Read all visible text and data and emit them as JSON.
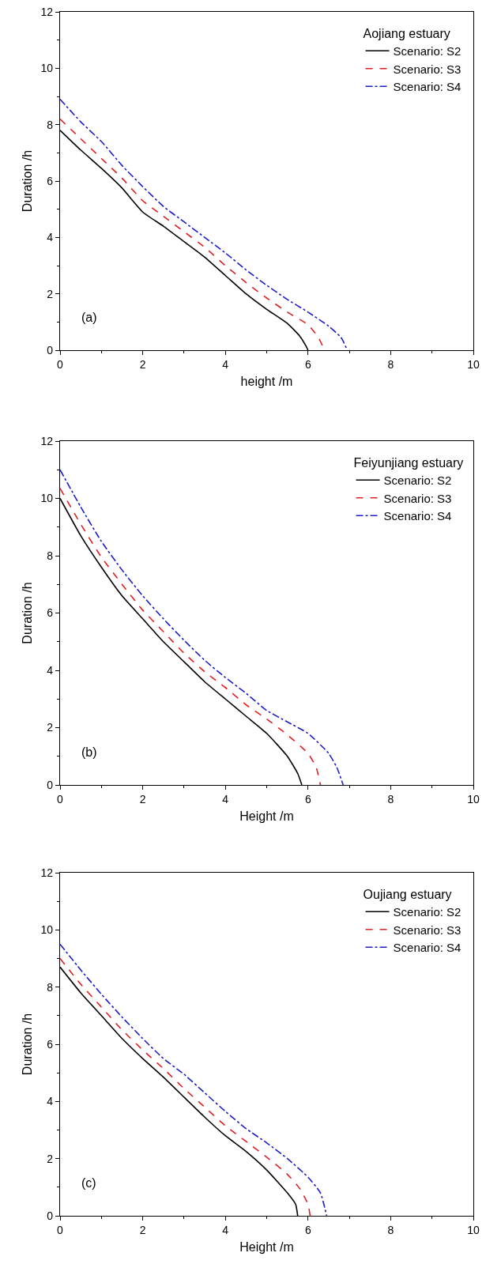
{
  "chart_data": [
    {
      "type": "line",
      "legend_title": "Aojiang estuary",
      "xlabel": "height /m",
      "ylabel": "Duration /h",
      "annotations": [
        "(a)"
      ],
      "legend": "top right",
      "xlim": [
        0,
        10
      ],
      "ylim": [
        0,
        12
      ],
      "xticks": [
        0,
        2,
        4,
        6,
        8,
        10
      ],
      "yticks": [
        0,
        2,
        4,
        6,
        8,
        10,
        12
      ],
      "series": [
        {
          "name": "Scenario: S2",
          "color": "#000000",
          "line_style": "solid",
          "x": [
            0,
            0.5,
            1,
            1.5,
            2,
            2.5,
            3,
            3.5,
            4,
            4.5,
            5,
            5.5,
            5.8,
            5.95,
            6.0
          ],
          "values": [
            7.8,
            7.1,
            6.45,
            5.75,
            4.9,
            4.4,
            3.85,
            3.3,
            2.65,
            2.0,
            1.45,
            0.95,
            0.5,
            0.15,
            0
          ]
        },
        {
          "name": "Scenario: S3",
          "color": "#e02020",
          "line_style": "dashed",
          "x": [
            0,
            0.5,
            1,
            1.5,
            2,
            2.5,
            3,
            3.5,
            4,
            4.5,
            5,
            5.5,
            6,
            6.25,
            6.4
          ],
          "values": [
            8.2,
            7.5,
            6.8,
            6.1,
            5.3,
            4.75,
            4.2,
            3.65,
            3.0,
            2.4,
            1.85,
            1.35,
            0.9,
            0.45,
            0
          ]
        },
        {
          "name": "Scenario: S4",
          "color": "#1c1cc8",
          "line_style": "dashdot",
          "x": [
            0,
            0.5,
            1,
            1.5,
            2,
            2.5,
            3,
            3.5,
            4,
            4.5,
            5,
            5.5,
            6,
            6.5,
            6.8,
            6.95
          ],
          "values": [
            8.9,
            8.1,
            7.4,
            6.55,
            5.8,
            5.1,
            4.55,
            4.0,
            3.45,
            2.85,
            2.3,
            1.8,
            1.35,
            0.85,
            0.45,
            0
          ]
        }
      ]
    },
    {
      "type": "line",
      "legend_title": "Feiyunjiang estuary",
      "xlabel": "Height /m",
      "ylabel": "Duration /h",
      "annotations": [
        "(b)"
      ],
      "legend": "top right",
      "xlim": [
        0,
        10
      ],
      "ylim": [
        0,
        12
      ],
      "xticks": [
        0,
        2,
        4,
        6,
        8,
        10
      ],
      "yticks": [
        0,
        2,
        4,
        6,
        8,
        10,
        12
      ],
      "series": [
        {
          "name": "Scenario: S2",
          "color": "#000000",
          "line_style": "solid",
          "x": [
            0,
            0.5,
            1,
            1.5,
            2,
            2.5,
            3,
            3.5,
            4,
            4.5,
            5,
            5.5,
            5.75,
            5.85
          ],
          "values": [
            10.0,
            8.7,
            7.6,
            6.6,
            5.8,
            5.0,
            4.3,
            3.6,
            3.0,
            2.4,
            1.8,
            1.0,
            0.4,
            0
          ]
        },
        {
          "name": "Scenario: S3",
          "color": "#e02020",
          "line_style": "dashed",
          "x": [
            0,
            0.5,
            1,
            1.5,
            2,
            2.5,
            3,
            3.5,
            4,
            4.5,
            5,
            5.5,
            6,
            6.2,
            6.3
          ],
          "values": [
            10.35,
            9.1,
            7.95,
            7.0,
            6.1,
            5.35,
            4.6,
            3.95,
            3.4,
            2.8,
            2.3,
            1.75,
            1.1,
            0.6,
            0
          ]
        },
        {
          "name": "Scenario: S4",
          "color": "#1c1cc8",
          "line_style": "dashdot",
          "x": [
            0,
            0.5,
            1,
            1.5,
            2,
            2.5,
            3,
            3.5,
            4,
            4.5,
            5,
            5.5,
            6,
            6.5,
            6.7,
            6.85
          ],
          "values": [
            11.0,
            9.7,
            8.5,
            7.5,
            6.6,
            5.8,
            5.05,
            4.35,
            3.75,
            3.2,
            2.6,
            2.2,
            1.8,
            1.1,
            0.6,
            0
          ]
        }
      ]
    },
    {
      "type": "line",
      "legend_title": "Oujiang estuary",
      "xlabel": "Height /m",
      "ylabel": "Duration /h",
      "annotations": [
        "(c)"
      ],
      "legend": "top right",
      "xlim": [
        0,
        10
      ],
      "ylim": [
        0,
        12
      ],
      "xticks": [
        0,
        2,
        4,
        6,
        8,
        10
      ],
      "yticks": [
        0,
        2,
        4,
        6,
        8,
        10,
        12
      ],
      "series": [
        {
          "name": "Scenario: S2",
          "color": "#000000",
          "line_style": "solid",
          "x": [
            0,
            0.5,
            1,
            1.5,
            2,
            2.5,
            3,
            3.5,
            4,
            4.5,
            5,
            5.5,
            5.7,
            5.75
          ],
          "values": [
            8.7,
            7.8,
            7.0,
            6.2,
            5.5,
            4.85,
            4.15,
            3.45,
            2.8,
            2.25,
            1.6,
            0.8,
            0.4,
            0
          ]
        },
        {
          "name": "Scenario: S3",
          "color": "#e02020",
          "line_style": "dashed",
          "x": [
            0,
            0.5,
            1,
            1.5,
            2,
            2.5,
            3,
            3.5,
            4,
            4.5,
            5,
            5.5,
            5.8,
            6.0,
            6.05
          ],
          "values": [
            9.0,
            8.1,
            7.3,
            6.5,
            5.8,
            5.15,
            4.45,
            3.8,
            3.15,
            2.6,
            2.05,
            1.45,
            0.95,
            0.4,
            0
          ]
        },
        {
          "name": "Scenario: S4",
          "color": "#1c1cc8",
          "line_style": "dashdot",
          "x": [
            0,
            0.5,
            1,
            1.5,
            2,
            2.5,
            3,
            3.5,
            4,
            4.5,
            5,
            5.5,
            6,
            6.3,
            6.45
          ],
          "values": [
            9.5,
            8.6,
            7.75,
            6.95,
            6.2,
            5.5,
            4.95,
            4.3,
            3.65,
            3.05,
            2.55,
            2.0,
            1.35,
            0.8,
            0
          ]
        }
      ]
    }
  ]
}
